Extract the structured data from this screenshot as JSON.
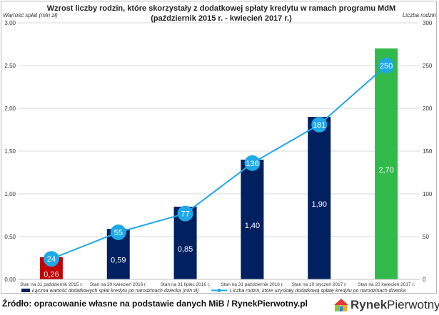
{
  "chart_data": {
    "type": "bar+line",
    "title_line1": "Wzrost liczby rodzin, które skorzystały z dodatkowej spłaty kredytu w ramach programu MdM",
    "title_line2": "(październik 2015 r. - kwiecień 2017 r.)",
    "ylabel_left": "Wartość spłat (mln zł)",
    "ylabel_right": "Liczba rodzin",
    "categories": [
      "Stan na 31 październik 2015 r.",
      "Stan na 30 kwiecień 2016 r.",
      "Stan na 31 lipiec 2016 r.",
      "Stan na 31 październik 2016 r.",
      "Stan na 10 styczeń 2017 r.",
      "Stan na 20 kwiecień 2017 r."
    ],
    "bars": {
      "name": "Łączna wartość dodatkowych spłat kredytu po narodzinach dziecka (mln zł)",
      "values": [
        0.26,
        0.59,
        0.85,
        1.4,
        1.9,
        2.7
      ],
      "labels": [
        "0,26",
        "0,59",
        "0,85",
        "1,40",
        "1,90",
        "2,70"
      ],
      "colors": [
        "#c00000",
        "#002060",
        "#002060",
        "#002060",
        "#002060",
        "#31b94a"
      ]
    },
    "line": {
      "name": "Liczba rodzin, które uzyskały dodatkową spłatę kredytu po narodzinach dziecka",
      "values": [
        24,
        55,
        77,
        136,
        181,
        250
      ],
      "color": "#1fa8e8"
    },
    "yleft": {
      "min": 0,
      "max": 3,
      "ticks": [
        "0,00",
        "0,50",
        "1,00",
        "1,50",
        "2,00",
        "2,50",
        "3,00"
      ]
    },
    "yright": {
      "min": 0,
      "max": 300,
      "ticks": [
        "0",
        "50",
        "100",
        "150",
        "200",
        "250",
        "300"
      ]
    },
    "grid": true,
    "legend_position": "bottom"
  },
  "footer": "Źródło: opracowanie własne na podstawie danych MiB / RynekPierwotny.pl",
  "logo": {
    "part1": "Rynek",
    "part2": "Pierwotny"
  }
}
